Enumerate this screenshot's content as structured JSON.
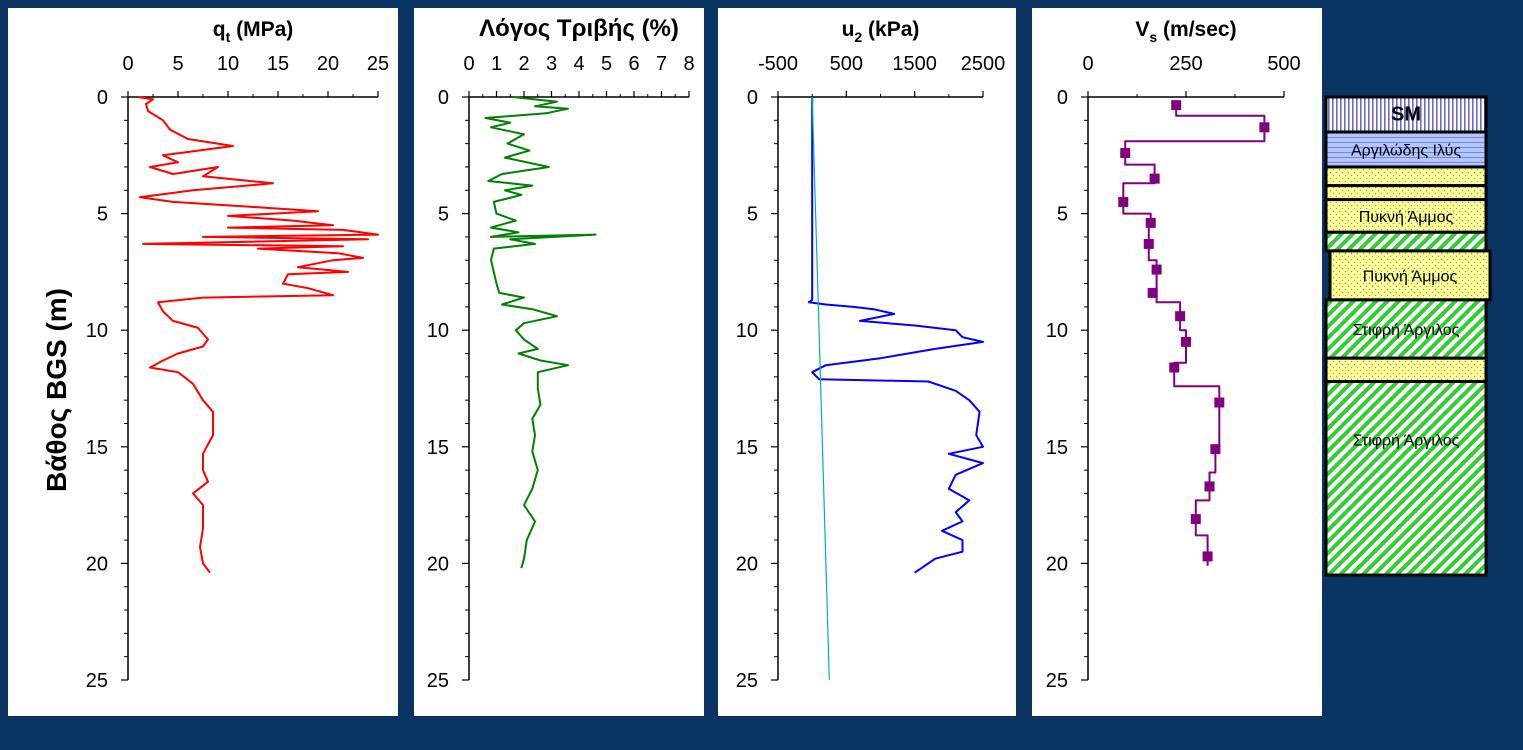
{
  "colors": {
    "background": "#0a3563",
    "qt": "#ff0000",
    "friction": "#008000",
    "u2": "#0000ff",
    "hydrostatic": "#00b0b0",
    "vs": "#800080",
    "sand": "#ffff99",
    "clay_hatch": "#33cc33",
    "sm": "#ccccff",
    "silt": "#b3c6ff"
  },
  "y_axis": {
    "label": "Βάθος BGS (m)",
    "ticks": [
      "0",
      "5",
      "10",
      "15",
      "20",
      "25"
    ]
  },
  "chart_data": [
    {
      "type": "line",
      "title_main": "q",
      "title_sub": "t",
      "title_rest": " (MPa)",
      "xlim": [
        0,
        25
      ],
      "ylim": [
        25,
        0
      ],
      "xticks": [
        "0",
        "5",
        "10",
        "15",
        "20",
        "25"
      ],
      "series": [
        {
          "values": [
            [
              1.0,
              0
            ],
            [
              2.5,
              0.1
            ],
            [
              1.8,
              0.3
            ],
            [
              2.0,
              0.6
            ],
            [
              3.5,
              1.0
            ],
            [
              4.2,
              1.4
            ],
            [
              6.0,
              1.8
            ],
            [
              10.5,
              2.1
            ],
            [
              7.0,
              2.3
            ],
            [
              3.5,
              2.5
            ],
            [
              5.0,
              2.8
            ],
            [
              2.2,
              3.0
            ],
            [
              4.5,
              3.3
            ],
            [
              9.0,
              3.0
            ],
            [
              7.5,
              3.4
            ],
            [
              14.5,
              3.7
            ],
            [
              6.5,
              4.0
            ],
            [
              1.2,
              4.3
            ],
            [
              4.5,
              4.5
            ],
            [
              12.0,
              4.7
            ],
            [
              19.0,
              4.9
            ],
            [
              14.5,
              5.0
            ],
            [
              10.0,
              5.1
            ],
            [
              16.5,
              5.3
            ],
            [
              20.5,
              5.5
            ],
            [
              10.0,
              5.6
            ],
            [
              21.5,
              5.7
            ],
            [
              25.0,
              5.9
            ],
            [
              7.5,
              6.0
            ],
            [
              24.0,
              6.1
            ],
            [
              1.5,
              6.3
            ],
            [
              21.5,
              6.4
            ],
            [
              13.0,
              6.5
            ],
            [
              21.0,
              6.7
            ],
            [
              23.5,
              6.9
            ],
            [
              20.5,
              7.0
            ],
            [
              17.0,
              7.3
            ],
            [
              22.0,
              7.5
            ],
            [
              16.0,
              7.6
            ],
            [
              15.5,
              8.0
            ],
            [
              18.0,
              8.2
            ],
            [
              20.5,
              8.5
            ],
            [
              7.5,
              8.6
            ],
            [
              3.0,
              8.8
            ],
            [
              3.5,
              9.2
            ],
            [
              4.5,
              9.6
            ],
            [
              7.0,
              9.9
            ],
            [
              8.0,
              10.4
            ],
            [
              7.5,
              10.7
            ],
            [
              5.0,
              11.0
            ],
            [
              3.5,
              11.3
            ],
            [
              2.2,
              11.6
            ],
            [
              5.0,
              11.8
            ],
            [
              6.5,
              12.3
            ],
            [
              7.5,
              13.0
            ],
            [
              8.5,
              13.5
            ],
            [
              8.5,
              14.5
            ],
            [
              7.5,
              15.3
            ],
            [
              7.5,
              16.0
            ],
            [
              8.0,
              16.5
            ],
            [
              6.5,
              17.0
            ],
            [
              7.5,
              17.5
            ],
            [
              7.5,
              18.5
            ],
            [
              7.2,
              19.3
            ],
            [
              7.5,
              20.0
            ],
            [
              8.2,
              20.4
            ]
          ]
        }
      ]
    },
    {
      "type": "line",
      "title_main": "Λόγος Τριβής (%)",
      "title_sub": "",
      "title_rest": "",
      "xlim": [
        0,
        8
      ],
      "ylim": [
        25,
        0
      ],
      "xticks": [
        "0",
        "1",
        "2",
        "3",
        "4",
        "5",
        "6",
        "7",
        "8"
      ],
      "series": [
        {
          "values": [
            [
              1.6,
              0
            ],
            [
              3.2,
              0.2
            ],
            [
              2.4,
              0.4
            ],
            [
              3.6,
              0.5
            ],
            [
              2.8,
              0.7
            ],
            [
              0.6,
              0.9
            ],
            [
              1.5,
              1.1
            ],
            [
              0.8,
              1.3
            ],
            [
              2.0,
              1.6
            ],
            [
              1.4,
              2.0
            ],
            [
              2.2,
              2.3
            ],
            [
              1.3,
              2.6
            ],
            [
              2.9,
              3.0
            ],
            [
              1.2,
              3.3
            ],
            [
              0.7,
              3.6
            ],
            [
              2.3,
              3.8
            ],
            [
              1.3,
              4.0
            ],
            [
              1.9,
              4.2
            ],
            [
              0.9,
              4.5
            ],
            [
              1.0,
              5.0
            ],
            [
              1.7,
              5.3
            ],
            [
              0.8,
              5.6
            ],
            [
              1.8,
              5.8
            ],
            [
              0.8,
              6.0
            ],
            [
              4.6,
              5.9
            ],
            [
              1.5,
              6.1
            ],
            [
              2.4,
              6.3
            ],
            [
              0.9,
              6.5
            ],
            [
              0.8,
              7.0
            ],
            [
              0.9,
              7.5
            ],
            [
              1.0,
              8.0
            ],
            [
              1.1,
              8.4
            ],
            [
              2.0,
              8.6
            ],
            [
              1.2,
              8.9
            ],
            [
              2.3,
              9.1
            ],
            [
              3.2,
              9.4
            ],
            [
              2.0,
              9.7
            ],
            [
              1.7,
              10.0
            ],
            [
              2.0,
              10.4
            ],
            [
              2.5,
              10.8
            ],
            [
              1.8,
              11.0
            ],
            [
              2.6,
              11.3
            ],
            [
              3.6,
              11.5
            ],
            [
              2.5,
              11.8
            ],
            [
              2.5,
              12.5
            ],
            [
              2.6,
              13.2
            ],
            [
              2.3,
              13.8
            ],
            [
              2.4,
              14.5
            ],
            [
              2.3,
              15.2
            ],
            [
              2.5,
              16.0
            ],
            [
              2.3,
              16.8
            ],
            [
              2.0,
              17.5
            ],
            [
              2.4,
              18.2
            ],
            [
              2.1,
              19.0
            ],
            [
              2.0,
              19.8
            ],
            [
              1.9,
              20.2
            ]
          ]
        }
      ]
    },
    {
      "type": "line",
      "title_main": "u",
      "title_sub": "2",
      "title_rest": " (kPa)",
      "xlim": [
        -500,
        2500
      ],
      "ylim": [
        25,
        0
      ],
      "xticks": [
        "-500",
        "500",
        "1500",
        "2500"
      ],
      "series": [
        {
          "values": [
            [
              0,
              0
            ],
            [
              0,
              8.7
            ],
            [
              -50,
              8.8
            ],
            [
              200,
              8.9
            ],
            [
              600,
              9.0
            ],
            [
              900,
              9.1
            ],
            [
              1200,
              9.3
            ],
            [
              700,
              9.6
            ],
            [
              1500,
              9.8
            ],
            [
              2100,
              10.0
            ],
            [
              2200,
              10.3
            ],
            [
              2500,
              10.5
            ],
            [
              1800,
              10.8
            ],
            [
              1000,
              11.2
            ],
            [
              200,
              11.5
            ],
            [
              0,
              11.8
            ],
            [
              100,
              12.1
            ],
            [
              1700,
              12.2
            ],
            [
              2100,
              12.6
            ],
            [
              2300,
              13.0
            ],
            [
              2450,
              13.5
            ],
            [
              2400,
              14.5
            ],
            [
              2500,
              15.0
            ],
            [
              2000,
              15.3
            ],
            [
              2500,
              15.7
            ],
            [
              2100,
              16.2
            ],
            [
              2000,
              16.8
            ],
            [
              2300,
              17.3
            ],
            [
              2100,
              17.8
            ],
            [
              2200,
              18.2
            ],
            [
              1900,
              18.6
            ],
            [
              2200,
              19.0
            ],
            [
              2200,
              19.5
            ],
            [
              1800,
              19.8
            ],
            [
              1600,
              20.2
            ],
            [
              1500,
              20.4
            ]
          ]
        },
        {
          "values": [
            [
              0,
              0
            ],
            [
              250,
              25
            ]
          ]
        }
      ]
    },
    {
      "type": "line",
      "title_main": "V",
      "title_sub": "s",
      "title_rest": " (m/sec)",
      "xlim": [
        0,
        500
      ],
      "ylim": [
        25,
        0
      ],
      "xticks": [
        "0",
        "250",
        "500"
      ],
      "series": [
        {
          "values": [
            [
              225,
              0.35
            ],
            [
              225,
              0.8
            ],
            [
              450,
              0.8
            ],
            [
              450,
              1.9
            ],
            [
              95,
              1.9
            ],
            [
              95,
              2.9
            ],
            [
              170,
              2.9
            ],
            [
              170,
              3.7
            ],
            [
              90,
              3.7
            ],
            [
              90,
              5.0
            ],
            [
              160,
              5.0
            ],
            [
              160,
              5.5
            ],
            [
              155,
              5.5
            ],
            [
              155,
              7.0
            ],
            [
              175,
              7.0
            ],
            [
              175,
              8.8
            ],
            [
              235,
              8.8
            ],
            [
              235,
              10.0
            ],
            [
              250,
              10.0
            ],
            [
              250,
              11.4
            ],
            [
              220,
              11.4
            ],
            [
              220,
              12.4
            ],
            [
              335,
              12.4
            ],
            [
              335,
              15.1
            ],
            [
              325,
              15.1
            ],
            [
              325,
              16.1
            ],
            [
              310,
              16.1
            ],
            [
              310,
              17.3
            ],
            [
              275,
              17.3
            ],
            [
              275,
              18.8
            ],
            [
              305,
              18.8
            ],
            [
              305,
              20.1
            ]
          ],
          "markers": [
            [
              225,
              0.35
            ],
            [
              450,
              1.3
            ],
            [
              95,
              2.4
            ],
            [
              170,
              3.5
            ],
            [
              90,
              4.5
            ],
            [
              160,
              5.4
            ],
            [
              155,
              6.3
            ],
            [
              175,
              7.4
            ],
            [
              165,
              8.4
            ],
            [
              235,
              9.4
            ],
            [
              250,
              10.5
            ],
            [
              220,
              11.6
            ],
            [
              335,
              13.1
            ],
            [
              325,
              15.1
            ],
            [
              310,
              16.7
            ],
            [
              275,
              18.1
            ],
            [
              305,
              19.7
            ]
          ]
        }
      ]
    }
  ],
  "soil_layers": [
    {
      "label": "SM",
      "top": 0,
      "bottom": 1.5,
      "fill": "sm"
    },
    {
      "label": "Αργιλώδης Ιλύς",
      "top": 1.5,
      "bottom": 3.0,
      "fill": "silt"
    },
    {
      "label": "",
      "top": 3.0,
      "bottom": 3.8,
      "fill": "sand"
    },
    {
      "label": "",
      "top": 3.8,
      "bottom": 4.4,
      "fill": "sand"
    },
    {
      "label": "Πυκνή Άμμος",
      "top": 4.4,
      "bottom": 5.8,
      "fill": "sand"
    },
    {
      "label": "",
      "top": 5.8,
      "bottom": 6.6,
      "fill": "clay"
    },
    {
      "label": "Πυκνή Άμμος",
      "top": 6.6,
      "bottom": 8.7,
      "fill": "sand",
      "offset": true
    },
    {
      "label": "Στιφρή Άργιλος",
      "top": 8.7,
      "bottom": 11.2,
      "fill": "clay"
    },
    {
      "label": "",
      "top": 11.2,
      "bottom": 12.2,
      "fill": "sand"
    },
    {
      "label": "Στιφρή Άργιλος",
      "top": 12.2,
      "bottom": 20.5,
      "fill": "clay"
    }
  ]
}
